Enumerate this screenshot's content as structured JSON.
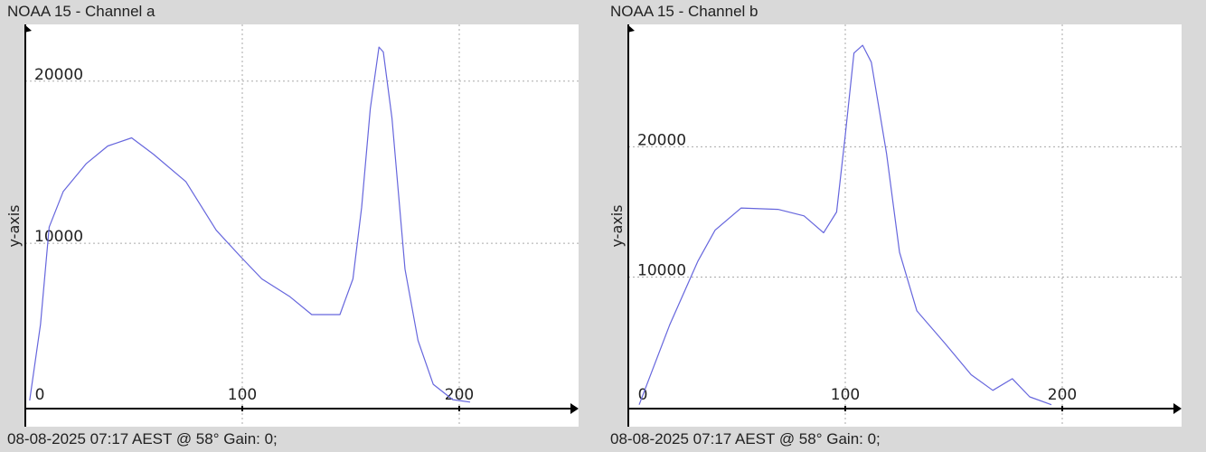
{
  "chart_data": [
    {
      "type": "line",
      "title": "NOAA 15 - Channel a",
      "footer": "08-08-2025 07:17 AEST @ 58° Gain: 0;",
      "xlabel": "",
      "ylabel": "y-axis",
      "xlim": [
        0,
        255
      ],
      "ylim": [
        -200,
        23500
      ],
      "xticks": [
        0,
        100,
        200
      ],
      "yticks": [
        10000,
        20000
      ],
      "grid": true,
      "line_color": "#6666dd",
      "series": [
        {
          "name": "Channel a",
          "x": [
            2,
            7,
            11,
            17.5,
            28,
            38,
            49,
            59,
            74,
            88,
            99,
            109,
            122,
            132,
            145,
            151,
            155,
            159,
            163,
            165,
            169,
            175,
            181,
            188,
            197,
            205
          ],
          "y": [
            300,
            5000,
            11000,
            13200,
            14900,
            16000,
            16500,
            15500,
            13800,
            10800,
            9200,
            7800,
            6700,
            5600,
            5600,
            7800,
            12200,
            18300,
            22100,
            21800,
            17700,
            8400,
            4000,
            1300,
            350,
            200
          ]
        }
      ]
    },
    {
      "type": "line",
      "title": "NOAA 15 - Channel b",
      "footer": "08-08-2025 07:17 AEST @ 58° Gain: 0;",
      "xlabel": "",
      "ylabel": "y-axis",
      "xlim": [
        0,
        255
      ],
      "ylim": [
        -100,
        29400
      ],
      "xticks": [
        0,
        100,
        200
      ],
      "yticks": [
        10000,
        20000
      ],
      "grid": true,
      "line_color": "#6666dd",
      "series": [
        {
          "name": "Channel b",
          "x": [
            5,
            19,
            32,
            40,
            52,
            69,
            81,
            90,
            96,
            100,
            104,
            108,
            112,
            119,
            125,
            133,
            146,
            158,
            168,
            177,
            185,
            195
          ],
          "y": [
            200,
            6300,
            11200,
            13600,
            15300,
            15200,
            14700,
            13400,
            15000,
            20900,
            27200,
            27800,
            26500,
            19500,
            11900,
            7400,
            4900,
            2500,
            1300,
            2200,
            800,
            200
          ]
        }
      ]
    }
  ]
}
